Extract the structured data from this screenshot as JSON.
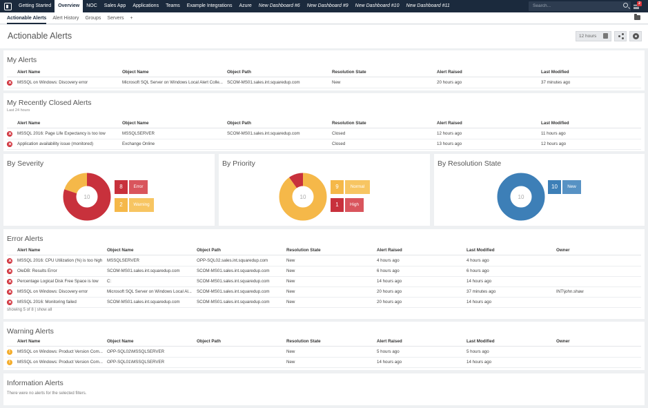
{
  "topnav": {
    "items": [
      {
        "label": "Getting Started",
        "active": false,
        "italic": false
      },
      {
        "label": "Overview",
        "active": true,
        "italic": false
      },
      {
        "label": "NOC",
        "active": false,
        "italic": false
      },
      {
        "label": "Sales App",
        "active": false,
        "italic": false
      },
      {
        "label": "Applications",
        "active": false,
        "italic": false
      },
      {
        "label": "Teams",
        "active": false,
        "italic": false
      },
      {
        "label": "Example Integrations",
        "active": false,
        "italic": false
      },
      {
        "label": "Azure",
        "active": false,
        "italic": false
      },
      {
        "label": "New Dashboard #6",
        "active": false,
        "italic": true
      },
      {
        "label": "New Dashboard #9",
        "active": false,
        "italic": true
      },
      {
        "label": "New Dashboard #10",
        "active": false,
        "italic": true
      },
      {
        "label": "New Dashboard #11",
        "active": false,
        "italic": true
      }
    ],
    "search_placeholder": "Search...",
    "notification_count": "2"
  },
  "subnav": {
    "items": [
      {
        "label": "Actionable Alerts",
        "active": true
      },
      {
        "label": "Alert History",
        "active": false
      },
      {
        "label": "Groups",
        "active": false
      },
      {
        "label": "Servers",
        "active": false
      },
      {
        "label": "+",
        "active": false
      }
    ]
  },
  "page": {
    "title": "Actionable Alerts",
    "timeframe": "12 hours"
  },
  "my_alerts": {
    "title": "My Alerts",
    "columns": [
      "Alert Name",
      "Object Name",
      "Object Path",
      "Resolution State",
      "Alert Raised",
      "Last Modified"
    ],
    "rows": [
      {
        "severity": "error",
        "name": "MSSQL on Windows: Discovery error",
        "object": "Microsoft SQL Server on Windows Local Alert Colle...",
        "path": "SCOM-MS01.sales.int.squaredup.com",
        "state": "New",
        "raised": "20 hours ago",
        "modified": "37 minutes ago"
      }
    ]
  },
  "recently_closed": {
    "title": "My Recently Closed Alerts",
    "subtitle": "Last 24 hours",
    "columns": [
      "Alert Name",
      "Object Name",
      "Object Path",
      "Resolution State",
      "Alert Raised",
      "Last Modified"
    ],
    "rows": [
      {
        "severity": "error",
        "name": "MSSQL 2016: Page Life Expectancy is too low",
        "object": "MSSQLSERVER",
        "path": "SCOM-MS01.sales.int.squaredup.com",
        "state": "Closed",
        "raised": "12 hours ago",
        "modified": "11 hours ago"
      },
      {
        "severity": "error",
        "name": "Application availability issue (monitored)",
        "object": "Exchange Online",
        "path": "",
        "state": "Closed",
        "raised": "13 hours ago",
        "modified": "12 hours ago"
      }
    ]
  },
  "severity_chart": {
    "title": "By Severity",
    "total": "10",
    "segments": [
      {
        "label": "Error",
        "value": 8,
        "color": "#c8313c",
        "label_color": "#d9555d"
      },
      {
        "label": "Warning",
        "value": 2,
        "color": "#f5b849",
        "label_color": "#f7c562"
      }
    ]
  },
  "priority_chart": {
    "title": "By Priority",
    "total": "10",
    "segments": [
      {
        "label": "Normal",
        "value": 9,
        "color": "#f5b849",
        "label_color": "#f7c562"
      },
      {
        "label": "High",
        "value": 1,
        "color": "#c8313c",
        "label_color": "#d9555d"
      }
    ]
  },
  "resolution_chart": {
    "title": "By Resolution State",
    "total": "10",
    "segments": [
      {
        "label": "New",
        "value": 10,
        "color": "#3d7fb7",
        "label_color": "#5792c4"
      }
    ]
  },
  "error_alerts": {
    "title": "Error Alerts",
    "columns": [
      "Alert Name",
      "Object Name",
      "Object Path",
      "Resolution State",
      "Alert Raised",
      "Last Modified",
      "Owner"
    ],
    "rows": [
      {
        "severity": "error",
        "name": "MSSQL 2016: CPU Utilization (%) is too high",
        "object": "MSSQLSERVER",
        "path": "OPP-SQL02.sales.int.squaredup.com",
        "state": "New",
        "raised": "4 hours ago",
        "modified": "4 hours ago",
        "owner": ""
      },
      {
        "severity": "error",
        "name": "OleDB: Results Error",
        "object": "SCOM-MS01.sales.int.squaredup.com",
        "path": "SCOM-MS01.sales.int.squaredup.com",
        "state": "New",
        "raised": "6 hours ago",
        "modified": "6 hours ago",
        "owner": ""
      },
      {
        "severity": "error",
        "name": "Percentage Logical Disk Free Space is low",
        "object": "C:",
        "path": "SCOM-MS01.sales.int.squaredup.com",
        "state": "New",
        "raised": "14 hours ago",
        "modified": "14 hours ago",
        "owner": ""
      },
      {
        "severity": "error",
        "name": "MSSQL on Windows: Discovery error",
        "object": "Microsoft SQL Server on Windows Local Al...",
        "path": "SCOM-MS01.sales.int.squaredup.com",
        "state": "New",
        "raised": "20 hours ago",
        "modified": "37 minutes ago",
        "owner": "INT\\john.shaw"
      },
      {
        "severity": "error",
        "name": "MSSQL 2016: Monitoring failed",
        "object": "SCOM-MS01.sales.int.squaredup.com",
        "path": "SCOM-MS01.sales.int.squaredup.com",
        "state": "New",
        "raised": "20 hours ago",
        "modified": "14 hours ago",
        "owner": ""
      }
    ],
    "footer": "showing 5 of 8 | show all"
  },
  "warning_alerts": {
    "title": "Warning Alerts",
    "columns": [
      "Alert Name",
      "Object Name",
      "Object Path",
      "Resolution State",
      "Alert Raised",
      "Last Modified",
      "Owner"
    ],
    "rows": [
      {
        "severity": "warning",
        "name": "MSSQL on Windows: Product Version Com...",
        "object": "OPP-SQL02\\MSSQLSERVER",
        "path": "",
        "state": "New",
        "raised": "5 hours ago",
        "modified": "5 hours ago",
        "owner": ""
      },
      {
        "severity": "warning",
        "name": "MSSQL on Windows: Product Version Com...",
        "object": "OPP-SQL01\\MSSQLSERVER",
        "path": "",
        "state": "New",
        "raised": "14 hours ago",
        "modified": "14 hours ago",
        "owner": ""
      }
    ]
  },
  "info_alerts": {
    "title": "Information Alerts",
    "empty_text": "There were no alerts for the selected filters."
  }
}
